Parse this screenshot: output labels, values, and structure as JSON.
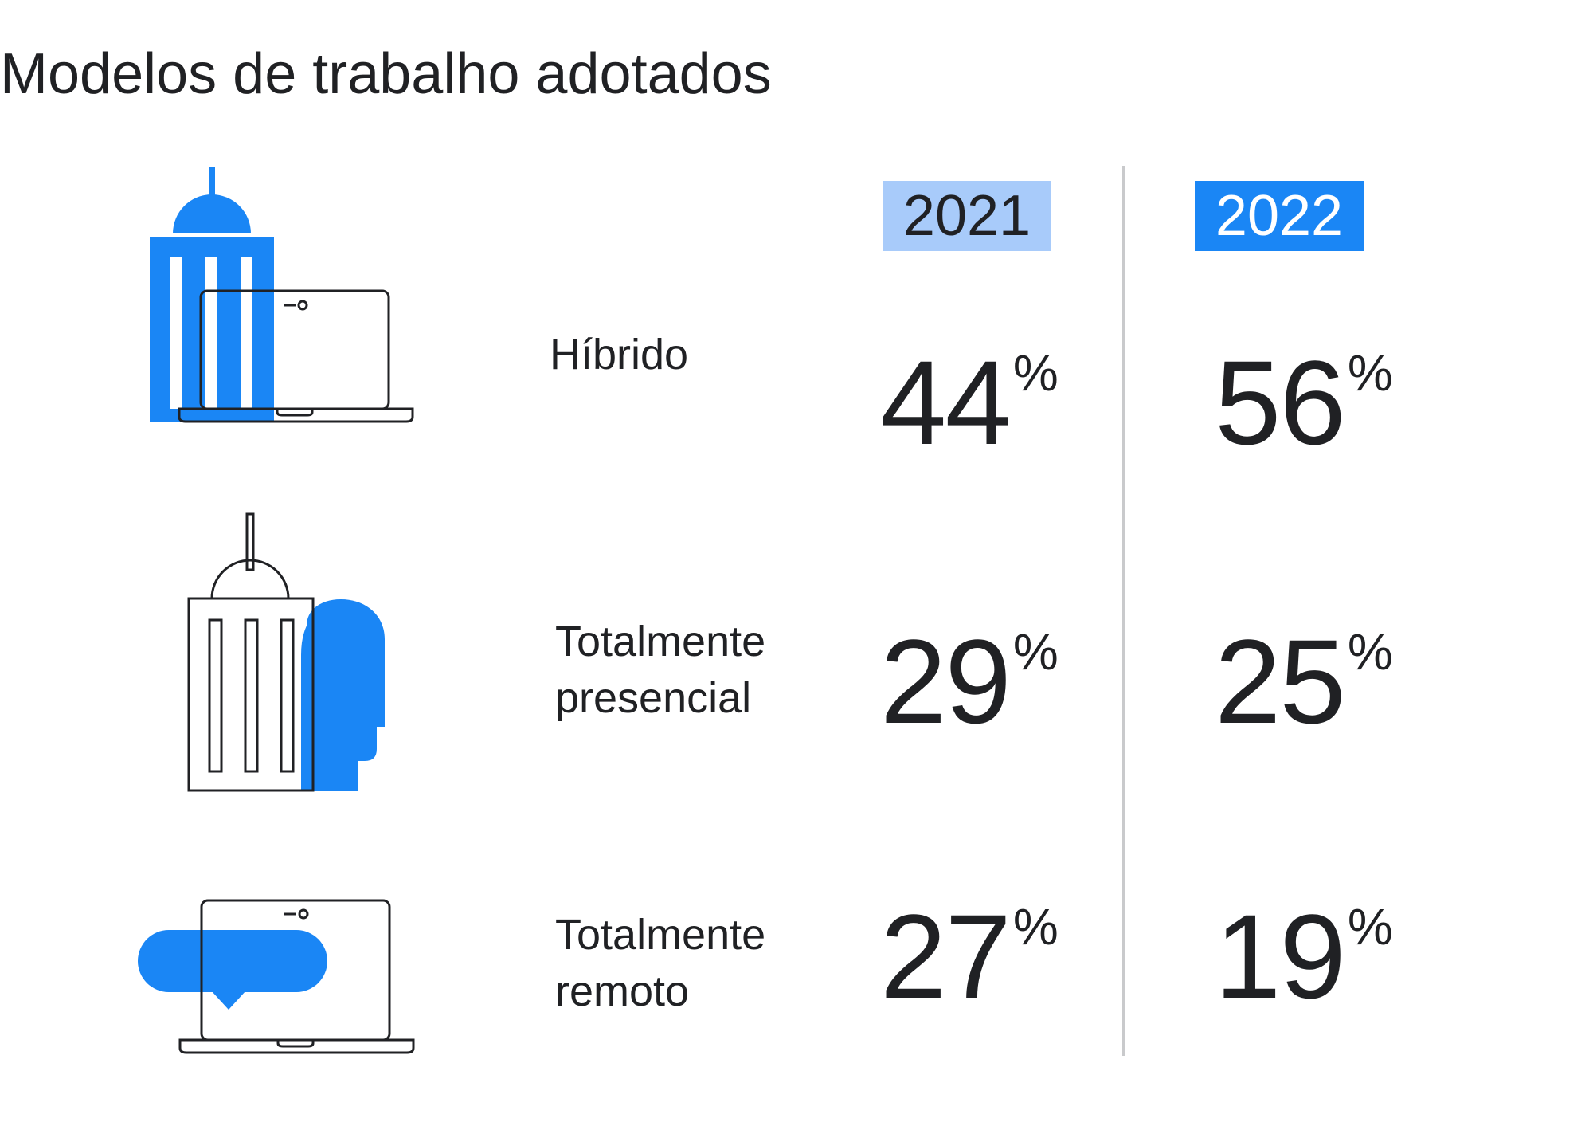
{
  "title": "Modelos de trabalho adotados",
  "colors": {
    "accent": "#1a86f5",
    "accent_light": "#a8cbfa",
    "text": "#202124",
    "divider": "#c9cacc"
  },
  "chart_data": {
    "type": "table",
    "title": "Modelos de trabalho adotados",
    "unit": "%",
    "columns": [
      "2021",
      "2022"
    ],
    "rows": [
      {
        "label": "Híbrido",
        "label_lines": [
          "Híbrido"
        ],
        "icon": "office-building-laptop-icon",
        "values": [
          44,
          56
        ]
      },
      {
        "label": "Totalmente presencial",
        "label_lines": [
          "Totalmente",
          "presencial"
        ],
        "icon": "office-building-person-icon",
        "values": [
          29,
          25
        ]
      },
      {
        "label": "Totalmente remoto",
        "label_lines": [
          "Totalmente",
          "remoto"
        ],
        "icon": "laptop-chat-bubble-icon",
        "values": [
          27,
          19
        ]
      }
    ]
  }
}
